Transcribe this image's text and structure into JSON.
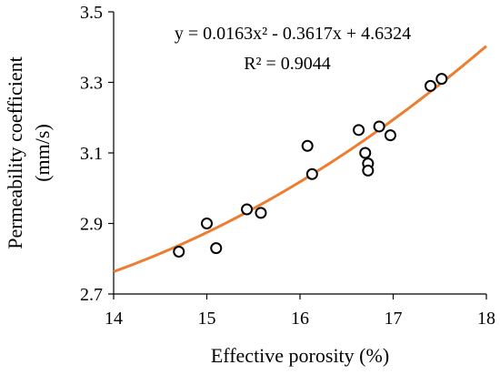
{
  "chart_data": {
    "type": "scatter",
    "title": "",
    "xlabel": "Effective porosity (%)",
    "ylabel_line1": "Permeability coefficient",
    "ylabel_line2": "(mm/s)",
    "xlim": [
      14,
      18
    ],
    "ylim": [
      2.7,
      3.5
    ],
    "xticks": [
      "14",
      "15",
      "16",
      "17",
      "18"
    ],
    "yticks": [
      "2.7",
      "2.9",
      "3.1",
      "3.3",
      "3.5"
    ],
    "grid": false,
    "points": [
      {
        "x": 14.7,
        "y": 2.82
      },
      {
        "x": 15.0,
        "y": 2.9
      },
      {
        "x": 15.1,
        "y": 2.83
      },
      {
        "x": 15.43,
        "y": 2.94
      },
      {
        "x": 15.58,
        "y": 2.93
      },
      {
        "x": 16.08,
        "y": 3.12
      },
      {
        "x": 16.13,
        "y": 3.04
      },
      {
        "x": 16.63,
        "y": 3.165
      },
      {
        "x": 16.7,
        "y": 3.1
      },
      {
        "x": 16.73,
        "y": 3.07
      },
      {
        "x": 16.73,
        "y": 3.05
      },
      {
        "x": 16.85,
        "y": 3.175
      },
      {
        "x": 16.97,
        "y": 3.15
      },
      {
        "x": 17.4,
        "y": 3.29
      },
      {
        "x": 17.52,
        "y": 3.31
      }
    ],
    "trendline": {
      "type": "polynomial",
      "a": 0.0163,
      "b": -0.3617,
      "c": 4.6324,
      "color": "#ED7D31",
      "equation_text": "y = 0.0163x² - 0.3617x + 4.6324",
      "r2_text": "R² = 0.9044"
    },
    "marker_color": "#000000"
  }
}
